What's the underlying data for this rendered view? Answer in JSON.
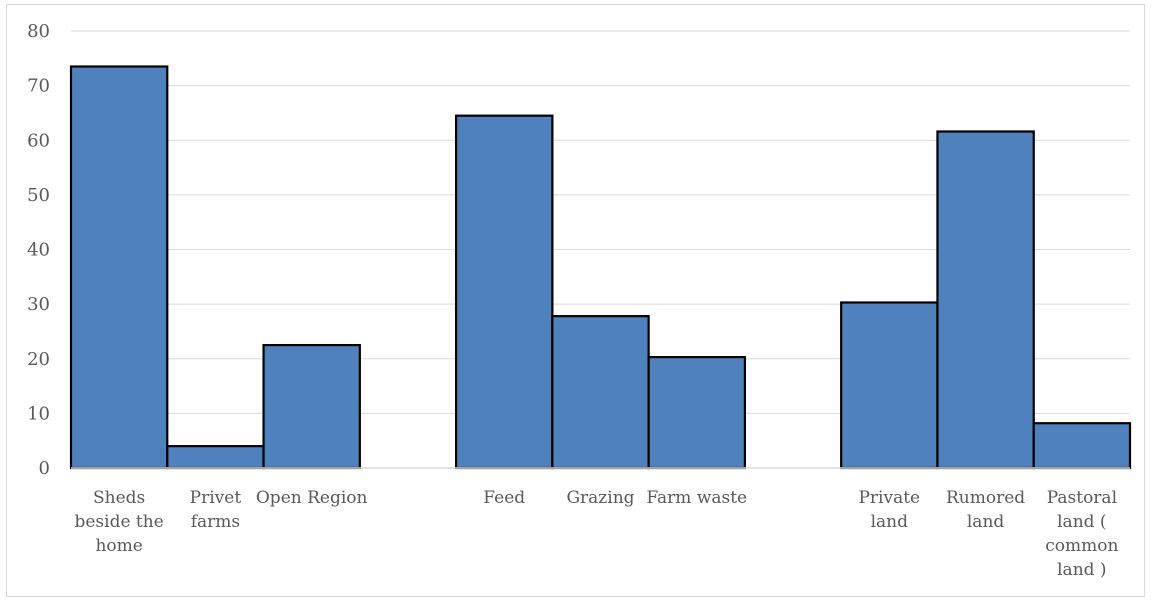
{
  "chart_data": {
    "type": "bar",
    "title": "",
    "xlabel": "",
    "ylabel": "",
    "ylim": [
      0,
      80
    ],
    "yticks": [
      0,
      10,
      20,
      30,
      40,
      50,
      60,
      70,
      80
    ],
    "grid": true,
    "legend": "none",
    "colors": {
      "bar_fill": "#4f81bd",
      "bar_stroke": "#000000",
      "grid": "#d9d9d9",
      "text": "#595959"
    },
    "groups": [
      {
        "categories": [
          "Sheds beside the home",
          "Privet farms",
          "Open Region"
        ],
        "values": [
          73.5,
          4,
          22.5
        ]
      },
      {
        "categories": [
          "Feed",
          "Grazing",
          "Farm waste"
        ],
        "values": [
          64.5,
          27.8,
          20.3
        ]
      },
      {
        "categories": [
          "Private land",
          "Rumored land",
          "Pastoral land ( common land )"
        ],
        "values": [
          30.3,
          61.6,
          8.2
        ]
      }
    ]
  }
}
